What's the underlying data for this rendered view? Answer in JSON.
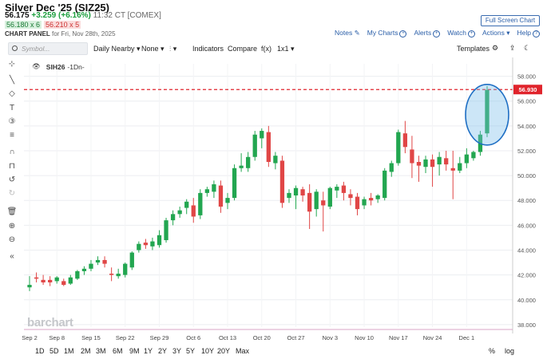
{
  "header": {
    "title": "Silver Dec '25 (SIZ25)",
    "last": "56.175",
    "change": "+3.259 (+6.16%)",
    "time": "11:32 CT [COMEX]",
    "bid": "56.180 x 6",
    "ask": "56.210 x 5",
    "panel_label": "CHART PANEL",
    "panel_date": "for Fri, Nov 28th, 2025",
    "fullscreen_label": "Full Screen Chart",
    "links": {
      "notes": "Notes",
      "my_charts": "My Charts",
      "alerts": "Alerts",
      "watch": "Watch",
      "actions": "Actions",
      "help": "Help"
    }
  },
  "toolbar": {
    "symbol_placeholder": "Symbol...",
    "period": "Daily Nearby",
    "study": "None",
    "indicators": "Indicators",
    "compare": "Compare",
    "fx": "f(x)",
    "layout": "1x1",
    "templates": "Templates"
  },
  "legend": {
    "symbol": "SIH26",
    "period": "-1Dn-"
  },
  "watermark": "barchart",
  "last_price_label": "56.930",
  "ranges": [
    "1D",
    "5D",
    "1M",
    "2M",
    "3M",
    "6M",
    "9M",
    "1Y",
    "2Y",
    "3Y",
    "5Y",
    "10Y",
    "20Y",
    "Max"
  ],
  "scale_options": [
    "%",
    "log"
  ],
  "chart_data": {
    "type": "candlestick",
    "x_ticks": [
      {
        "label": "Sep 2",
        "i": 0
      },
      {
        "label": "Sep 8",
        "i": 4
      },
      {
        "label": "Sep 15",
        "i": 9
      },
      {
        "label": "Sep 22",
        "i": 14
      },
      {
        "label": "Sep 29",
        "i": 19
      },
      {
        "label": "Oct 6",
        "i": 24
      },
      {
        "label": "Oct 13",
        "i": 29
      },
      {
        "label": "Oct 20",
        "i": 34
      },
      {
        "label": "Oct 27",
        "i": 39
      },
      {
        "label": "Nov 3",
        "i": 44
      },
      {
        "label": "Nov 10",
        "i": 49
      },
      {
        "label": "Nov 17",
        "i": 54
      },
      {
        "label": "Nov 24",
        "i": 59
      },
      {
        "label": "Dec 1",
        "i": 64
      }
    ],
    "y_ticks": [
      38,
      40,
      42,
      44,
      46,
      48,
      50,
      52,
      54,
      56,
      58
    ],
    "ylim": [
      37.8,
      59.0
    ],
    "reference_price": 56.93,
    "candles": [
      [
        41.0,
        41.9,
        41.2,
        40.7
      ],
      [
        41.8,
        42.2,
        41.7,
        41.4
      ],
      [
        41.6,
        42.0,
        41.4,
        41.2
      ],
      [
        41.6,
        41.9,
        41.4,
        41.1
      ],
      [
        41.5,
        41.9,
        41.8,
        41.3
      ],
      [
        41.5,
        41.7,
        41.2,
        41.1
      ],
      [
        41.3,
        42.0,
        41.8,
        41.2
      ],
      [
        41.7,
        42.4,
        42.3,
        41.6
      ],
      [
        42.3,
        42.7,
        42.5,
        42.0
      ],
      [
        42.5,
        43.2,
        42.9,
        42.3
      ],
      [
        43.0,
        43.5,
        43.2,
        42.8
      ],
      [
        43.2,
        43.5,
        42.9,
        42.6
      ],
      [
        42.1,
        42.6,
        42.0,
        41.5
      ],
      [
        41.9,
        42.5,
        42.1,
        41.7
      ],
      [
        42.0,
        43.0,
        42.9,
        41.8
      ],
      [
        42.6,
        43.9,
        43.8,
        42.4
      ],
      [
        44.0,
        44.7,
        44.5,
        43.8
      ],
      [
        44.6,
        44.9,
        44.4,
        44.1
      ],
      [
        44.3,
        45.0,
        44.7,
        44.0
      ],
      [
        44.4,
        45.6,
        45.2,
        44.2
      ],
      [
        44.8,
        46.6,
        46.4,
        44.6
      ],
      [
        46.4,
        47.2,
        46.9,
        46.0
      ],
      [
        46.9,
        47.5,
        47.2,
        46.6
      ],
      [
        47.4,
        48.1,
        47.9,
        46.9
      ],
      [
        47.6,
        48.2,
        46.7,
        46.2
      ],
      [
        46.8,
        48.9,
        48.6,
        46.5
      ],
      [
        48.6,
        49.1,
        48.9,
        48.3
      ],
      [
        48.7,
        49.6,
        49.3,
        48.2
      ],
      [
        49.2,
        49.6,
        47.5,
        47.0
      ],
      [
        47.8,
        48.6,
        48.2,
        47.3
      ],
      [
        48.2,
        50.9,
        50.6,
        48.0
      ],
      [
        50.6,
        51.8,
        50.8,
        50.3
      ],
      [
        50.6,
        51.9,
        51.5,
        50.3
      ],
      [
        51.5,
        53.6,
        53.3,
        51.2
      ],
      [
        53.0,
        53.8,
        53.6,
        52.2
      ],
      [
        53.5,
        54.0,
        51.1,
        50.7
      ],
      [
        51.0,
        51.9,
        51.6,
        50.5
      ],
      [
        51.2,
        51.6,
        47.8,
        47.4
      ],
      [
        48.2,
        48.9,
        48.6,
        47.8
      ],
      [
        48.4,
        49.2,
        49.0,
        47.3
      ],
      [
        48.9,
        49.1,
        48.4,
        47.9
      ],
      [
        48.6,
        49.3,
        47.1,
        45.7
      ],
      [
        47.3,
        48.9,
        48.7,
        46.7
      ],
      [
        48.0,
        48.7,
        47.6,
        45.5
      ],
      [
        47.5,
        49.1,
        49.0,
        47.3
      ],
      [
        48.8,
        49.3,
        49.1,
        48.2
      ],
      [
        49.2,
        49.5,
        48.6,
        48.0
      ],
      [
        48.5,
        48.9,
        48.2,
        47.6
      ],
      [
        48.3,
        48.6,
        47.3,
        46.8
      ],
      [
        47.6,
        48.3,
        48.1,
        47.3
      ],
      [
        48.2,
        48.6,
        48.0,
        47.6
      ],
      [
        48.1,
        48.5,
        48.4,
        47.8
      ],
      [
        48.2,
        50.6,
        50.4,
        48.0
      ],
      [
        50.3,
        51.2,
        51.0,
        49.9
      ],
      [
        51.0,
        53.7,
        53.5,
        50.8
      ],
      [
        53.4,
        54.4,
        52.3,
        51.8
      ],
      [
        52.1,
        53.2,
        51.0,
        49.8
      ],
      [
        51.1,
        51.6,
        50.8,
        49.5
      ],
      [
        50.7,
        51.6,
        51.3,
        50.2
      ],
      [
        51.3,
        51.7,
        50.7,
        49.1
      ],
      [
        50.9,
        51.9,
        51.5,
        50.0
      ],
      [
        51.4,
        52.0,
        50.9,
        50.4
      ],
      [
        50.6,
        52.0,
        50.4,
        48.1
      ],
      [
        50.4,
        51.5,
        51.0,
        50.2
      ],
      [
        51.0,
        52.2,
        51.7,
        50.6
      ],
      [
        51.4,
        52.0,
        51.9,
        51.2
      ],
      [
        51.9,
        53.6,
        53.3,
        51.6
      ],
      [
        53.4,
        57.2,
        56.9,
        53.1
      ]
    ]
  }
}
